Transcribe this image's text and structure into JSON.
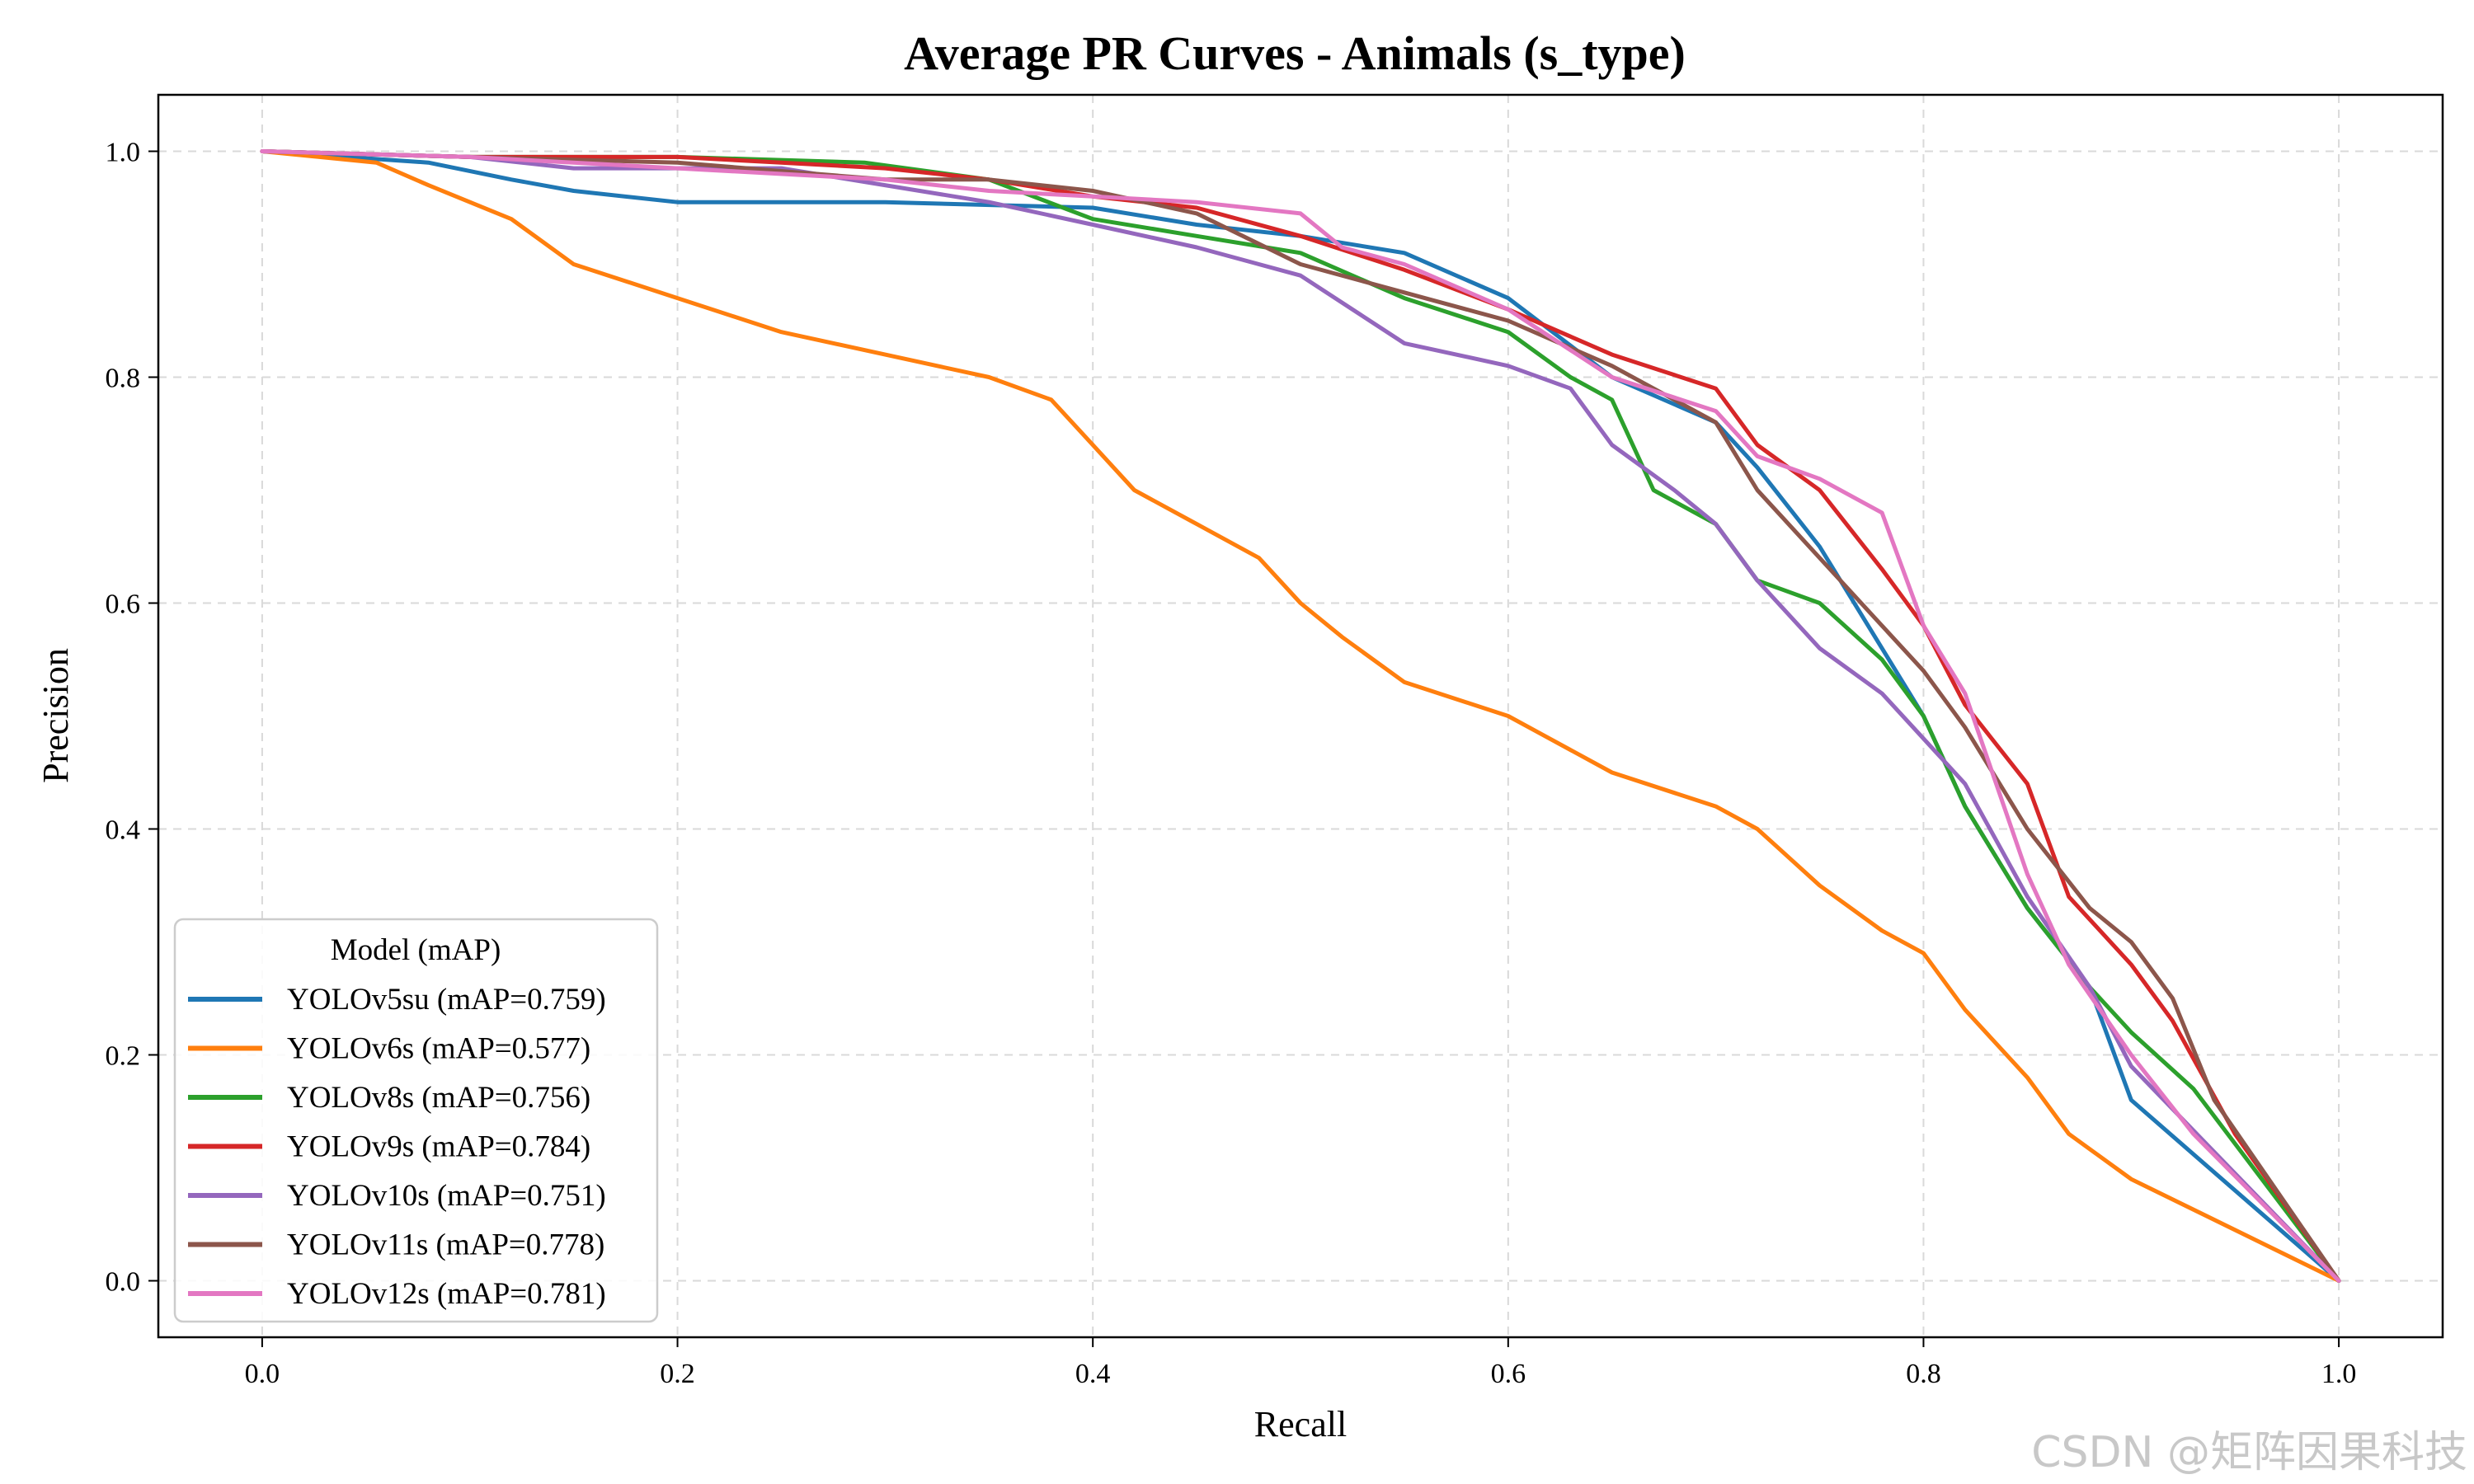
{
  "watermark": "CSDN @矩阵因果科技",
  "chart_data": {
    "type": "line",
    "title": "Average PR Curves - Animals (s_type)",
    "xlabel": "Recall",
    "ylabel": "Precision",
    "xlim": [
      -0.05,
      1.05
    ],
    "ylim": [
      -0.05,
      1.05
    ],
    "xticks": [
      "0.0",
      "0.2",
      "0.4",
      "0.6",
      "0.8",
      "1.0"
    ],
    "yticks": [
      "0.0",
      "0.2",
      "0.4",
      "0.6",
      "0.8",
      "1.0"
    ],
    "grid": true,
    "legend_title": "Model (mAP)",
    "legend_position": "lower-left",
    "series": [
      {
        "name": "YOLOv5su (mAP=0.759)",
        "color": "#1f77b4",
        "x": [
          0,
          0.08,
          0.12,
          0.15,
          0.2,
          0.3,
          0.4,
          0.45,
          0.5,
          0.55,
          0.6,
          0.65,
          0.7,
          0.72,
          0.75,
          0.78,
          0.8,
          0.82,
          0.85,
          0.88,
          0.9,
          1.0
        ],
        "y": [
          1,
          0.99,
          0.975,
          0.965,
          0.955,
          0.955,
          0.95,
          0.935,
          0.925,
          0.91,
          0.87,
          0.8,
          0.76,
          0.72,
          0.65,
          0.56,
          0.5,
          0.42,
          0.33,
          0.26,
          0.16,
          0
        ]
      },
      {
        "name": "YOLOv6s (mAP=0.577)",
        "color": "#ff7f0e",
        "x": [
          0,
          0.055,
          0.08,
          0.12,
          0.15,
          0.2,
          0.25,
          0.3,
          0.35,
          0.38,
          0.4,
          0.42,
          0.45,
          0.48,
          0.5,
          0.52,
          0.55,
          0.6,
          0.65,
          0.7,
          0.72,
          0.75,
          0.78,
          0.8,
          0.82,
          0.85,
          0.87,
          0.9,
          1.0
        ],
        "y": [
          1,
          0.99,
          0.97,
          0.94,
          0.9,
          0.87,
          0.84,
          0.82,
          0.8,
          0.78,
          0.74,
          0.7,
          0.67,
          0.64,
          0.6,
          0.57,
          0.53,
          0.5,
          0.45,
          0.42,
          0.4,
          0.35,
          0.31,
          0.29,
          0.24,
          0.18,
          0.13,
          0.09,
          0
        ]
      },
      {
        "name": "YOLOv8s (mAP=0.756)",
        "color": "#2ca02c",
        "x": [
          0,
          0.1,
          0.2,
          0.29,
          0.35,
          0.4,
          0.45,
          0.5,
          0.55,
          0.6,
          0.63,
          0.65,
          0.67,
          0.7,
          0.72,
          0.75,
          0.78,
          0.8,
          0.82,
          0.85,
          0.88,
          0.9,
          0.93,
          1.0
        ],
        "y": [
          1,
          0.995,
          0.995,
          0.99,
          0.975,
          0.94,
          0.925,
          0.91,
          0.87,
          0.84,
          0.8,
          0.78,
          0.7,
          0.67,
          0.62,
          0.6,
          0.55,
          0.5,
          0.42,
          0.33,
          0.26,
          0.22,
          0.17,
          0
        ]
      },
      {
        "name": "YOLOv9s (mAP=0.784)",
        "color": "#d62728",
        "x": [
          0,
          0.1,
          0.2,
          0.3,
          0.35,
          0.4,
          0.45,
          0.5,
          0.55,
          0.6,
          0.65,
          0.7,
          0.72,
          0.75,
          0.78,
          0.8,
          0.82,
          0.85,
          0.87,
          0.9,
          0.92,
          0.95,
          1.0
        ],
        "y": [
          1,
          0.995,
          0.995,
          0.985,
          0.975,
          0.96,
          0.95,
          0.925,
          0.895,
          0.86,
          0.82,
          0.79,
          0.74,
          0.7,
          0.63,
          0.58,
          0.51,
          0.44,
          0.34,
          0.28,
          0.23,
          0.13,
          0
        ]
      },
      {
        "name": "YOLOv10s (mAP=0.751)",
        "color": "#9467bd",
        "x": [
          0,
          0.1,
          0.15,
          0.25,
          0.35,
          0.4,
          0.45,
          0.5,
          0.55,
          0.6,
          0.63,
          0.65,
          0.68,
          0.7,
          0.72,
          0.75,
          0.78,
          0.8,
          0.82,
          0.85,
          0.88,
          0.9,
          1.0
        ],
        "y": [
          1,
          0.995,
          0.985,
          0.985,
          0.955,
          0.935,
          0.915,
          0.89,
          0.83,
          0.81,
          0.79,
          0.74,
          0.7,
          0.67,
          0.62,
          0.56,
          0.52,
          0.48,
          0.44,
          0.34,
          0.26,
          0.19,
          0
        ]
      },
      {
        "name": "YOLOv11s (mAP=0.778)",
        "color": "#8c564b",
        "x": [
          0,
          0.1,
          0.2,
          0.3,
          0.35,
          0.4,
          0.45,
          0.5,
          0.55,
          0.6,
          0.65,
          0.7,
          0.72,
          0.75,
          0.78,
          0.8,
          0.82,
          0.85,
          0.88,
          0.9,
          0.92,
          0.94,
          1.0
        ],
        "y": [
          1,
          0.995,
          0.99,
          0.975,
          0.975,
          0.965,
          0.945,
          0.9,
          0.875,
          0.85,
          0.81,
          0.76,
          0.7,
          0.64,
          0.58,
          0.54,
          0.49,
          0.4,
          0.33,
          0.3,
          0.25,
          0.16,
          0
        ]
      },
      {
        "name": "YOLOv12s (mAP=0.781)",
        "color": "#e377c2",
        "x": [
          0,
          0.1,
          0.2,
          0.3,
          0.35,
          0.4,
          0.45,
          0.5,
          0.52,
          0.55,
          0.6,
          0.65,
          0.7,
          0.72,
          0.75,
          0.78,
          0.8,
          0.82,
          0.85,
          0.87,
          0.9,
          0.93,
          1.0
        ],
        "y": [
          1,
          0.995,
          0.985,
          0.975,
          0.965,
          0.96,
          0.955,
          0.945,
          0.915,
          0.9,
          0.86,
          0.8,
          0.77,
          0.73,
          0.71,
          0.68,
          0.58,
          0.52,
          0.36,
          0.28,
          0.2,
          0.13,
          0
        ]
      }
    ]
  }
}
